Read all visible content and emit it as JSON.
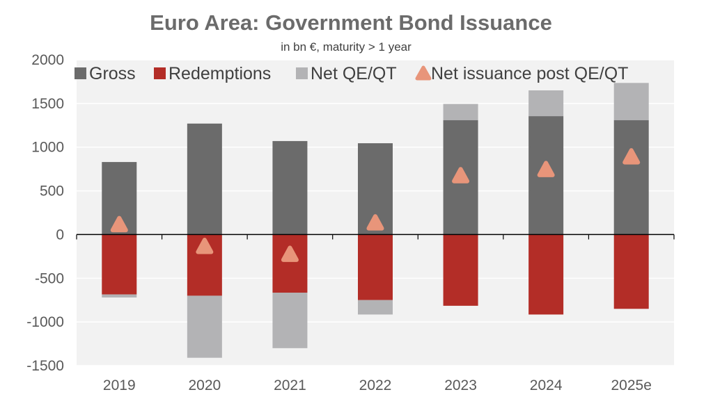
{
  "chart_data": {
    "type": "bar",
    "title": "Euro Area: Government Bond Issuance",
    "subtitle": "in bn €, maturity > 1 year",
    "categories": [
      "2019",
      "2020",
      "2021",
      "2022",
      "2023",
      "2024",
      "2025e"
    ],
    "ylim": [
      -1500,
      2000
    ],
    "yticks": [
      2000,
      1500,
      1000,
      500,
      0,
      -500,
      -1000,
      -1500
    ],
    "grid": true,
    "legend_position": "top",
    "series": [
      {
        "name": "Gross",
        "kind": "bar",
        "color": "#6b6b6b",
        "values": [
          830,
          1270,
          1070,
          1045,
          1310,
          1355,
          1310
        ]
      },
      {
        "name": "Redemptions",
        "kind": "bar",
        "color": "#b32d27",
        "values": [
          -685,
          -700,
          -665,
          -750,
          -815,
          -915,
          -850
        ]
      },
      {
        "name": "Net QE/QT",
        "kind": "bar",
        "color": "#b3b3b5",
        "values": [
          -35,
          -710,
          -635,
          -165,
          185,
          295,
          425
        ]
      },
      {
        "name": "Net issuance post QE/QT",
        "kind": "marker",
        "color": "#e8957a",
        "values": [
          110,
          -140,
          -230,
          130,
          670,
          740,
          885
        ]
      }
    ]
  }
}
